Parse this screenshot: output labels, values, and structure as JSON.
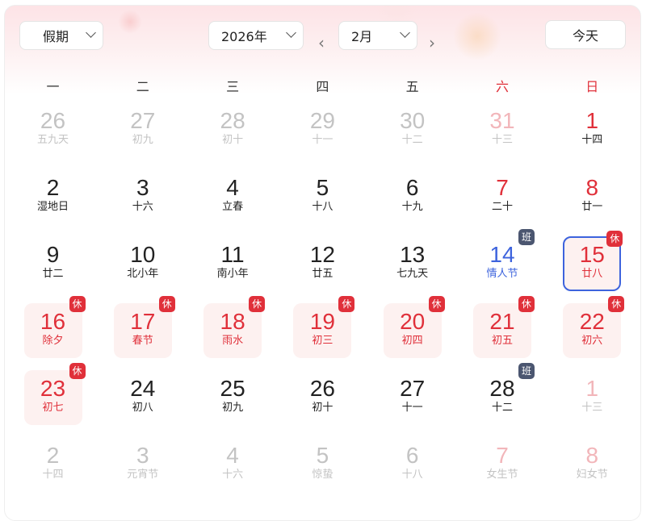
{
  "toolbar": {
    "holiday_select": "假期",
    "year_select": "2026年",
    "month_select": "2月",
    "today_button": "今天",
    "prev_icon": "chevron-left-icon",
    "next_icon": "chevron-right-icon"
  },
  "weekdays": [
    "一",
    "二",
    "三",
    "四",
    "五",
    "六",
    "日"
  ],
  "colors": {
    "red": "#e0303a",
    "blue": "#3d63dd",
    "badge_work": "#4b5670"
  },
  "weeks": [
    [
      {
        "d": "26",
        "sub": "五九天",
        "kind": "other"
      },
      {
        "d": "27",
        "sub": "初九",
        "kind": "other"
      },
      {
        "d": "28",
        "sub": "初十",
        "kind": "other"
      },
      {
        "d": "29",
        "sub": "十一",
        "kind": "other"
      },
      {
        "d": "30",
        "sub": "十二",
        "kind": "other"
      },
      {
        "d": "31",
        "sub": "十三",
        "kind": "other-weekend"
      },
      {
        "d": "1",
        "sub": "十四",
        "kind": "weekend"
      }
    ],
    [
      {
        "d": "2",
        "sub": "湿地日",
        "kind": "normal"
      },
      {
        "d": "3",
        "sub": "十六",
        "kind": "normal"
      },
      {
        "d": "4",
        "sub": "立春",
        "kind": "normal"
      },
      {
        "d": "5",
        "sub": "十八",
        "kind": "normal"
      },
      {
        "d": "6",
        "sub": "十九",
        "kind": "normal"
      },
      {
        "d": "7",
        "sub": "二十",
        "kind": "weekend"
      },
      {
        "d": "8",
        "sub": "廿一",
        "kind": "weekend"
      }
    ],
    [
      {
        "d": "9",
        "sub": "廿二",
        "kind": "normal"
      },
      {
        "d": "10",
        "sub": "北小年",
        "kind": "normal"
      },
      {
        "d": "11",
        "sub": "南小年",
        "kind": "normal"
      },
      {
        "d": "12",
        "sub": "廿五",
        "kind": "normal"
      },
      {
        "d": "13",
        "sub": "七九天",
        "kind": "normal"
      },
      {
        "d": "14",
        "sub": "情人节",
        "kind": "blue",
        "badge": "班"
      },
      {
        "d": "15",
        "sub": "廿八",
        "kind": "today",
        "badge": "休"
      }
    ],
    [
      {
        "d": "16",
        "sub": "除夕",
        "kind": "holiday",
        "badge": "休"
      },
      {
        "d": "17",
        "sub": "春节",
        "kind": "holiday",
        "badge": "休"
      },
      {
        "d": "18",
        "sub": "雨水",
        "kind": "holiday",
        "badge": "休"
      },
      {
        "d": "19",
        "sub": "初三",
        "kind": "holiday",
        "badge": "休"
      },
      {
        "d": "20",
        "sub": "初四",
        "kind": "holiday",
        "badge": "休"
      },
      {
        "d": "21",
        "sub": "初五",
        "kind": "holiday",
        "badge": "休"
      },
      {
        "d": "22",
        "sub": "初六",
        "kind": "holiday",
        "badge": "休"
      }
    ],
    [
      {
        "d": "23",
        "sub": "初七",
        "kind": "holiday",
        "badge": "休"
      },
      {
        "d": "24",
        "sub": "初八",
        "kind": "normal"
      },
      {
        "d": "25",
        "sub": "初九",
        "kind": "normal"
      },
      {
        "d": "26",
        "sub": "初十",
        "kind": "normal"
      },
      {
        "d": "27",
        "sub": "十一",
        "kind": "normal"
      },
      {
        "d": "28",
        "sub": "十二",
        "kind": "normal",
        "badge": "班"
      },
      {
        "d": "1",
        "sub": "十三",
        "kind": "other-weekend"
      }
    ],
    [
      {
        "d": "2",
        "sub": "十四",
        "kind": "other"
      },
      {
        "d": "3",
        "sub": "元宵节",
        "kind": "other"
      },
      {
        "d": "4",
        "sub": "十六",
        "kind": "other"
      },
      {
        "d": "5",
        "sub": "惊蛰",
        "kind": "other"
      },
      {
        "d": "6",
        "sub": "十八",
        "kind": "other"
      },
      {
        "d": "7",
        "sub": "女生节",
        "kind": "other-weekend"
      },
      {
        "d": "8",
        "sub": "妇女节",
        "kind": "other-weekend"
      }
    ]
  ]
}
